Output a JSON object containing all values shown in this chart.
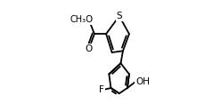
{
  "bg_color": "#ffffff",
  "line_color": "#000000",
  "line_width": 1.3,
  "font_size": 7.5,
  "xlim": [
    -0.55,
    1.05
  ],
  "ylim": [
    -0.55,
    1.0
  ]
}
